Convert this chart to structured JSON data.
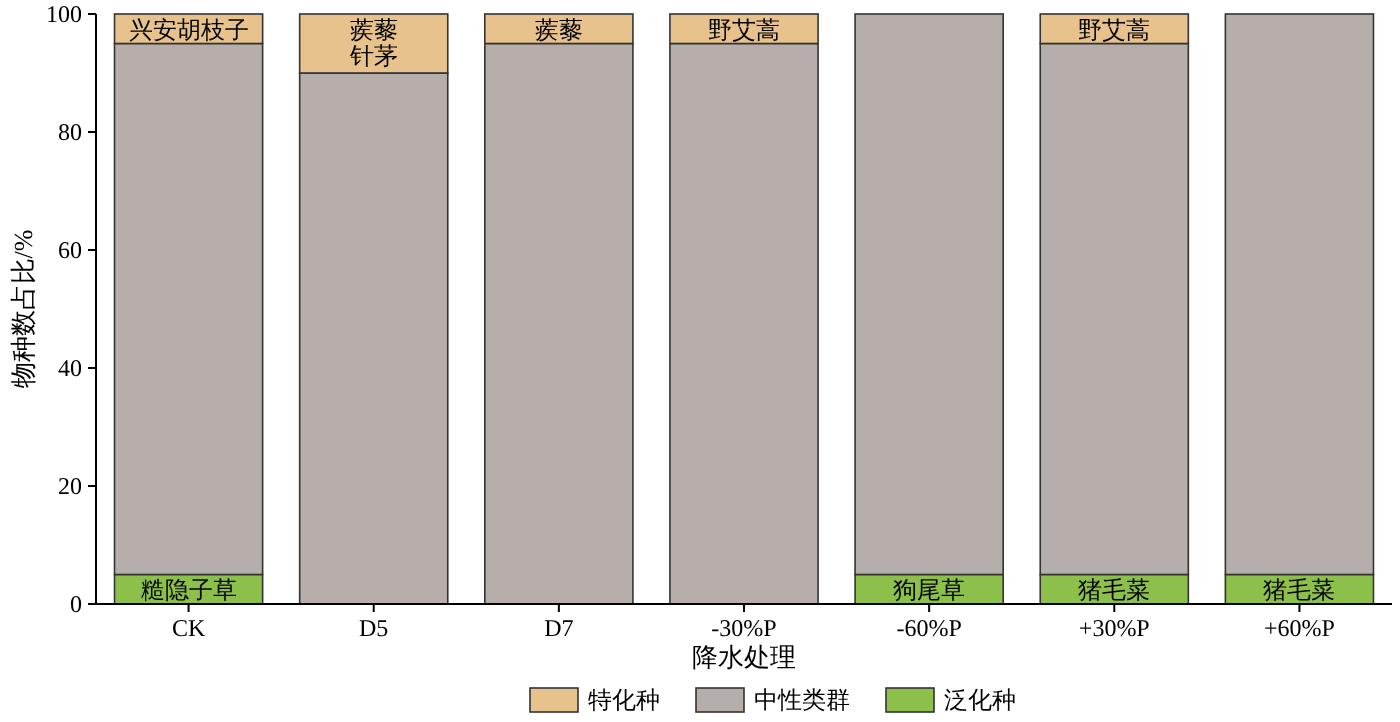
{
  "chart_data": {
    "type": "bar",
    "stacked": true,
    "xlabel": "降水处理",
    "ylabel": "物种数占比/%",
    "categories": [
      "CK",
      "D5",
      "D7",
      "-30%P",
      "-60%P",
      "+30%P",
      "+60%P"
    ],
    "series": [
      {
        "name": "泛化种",
        "color": "#8dc04a",
        "values": [
          5,
          0,
          0,
          0,
          5,
          5,
          5
        ],
        "value_labels": [
          "糙隐子草",
          null,
          null,
          null,
          "狗尾草",
          "猪毛菜",
          "猪毛菜"
        ]
      },
      {
        "name": "中性类群",
        "color": "#b5aeaa",
        "values": [
          90,
          90,
          95,
          95,
          95,
          90,
          95
        ]
      },
      {
        "name": "特化种",
        "color": "#e8c28c",
        "values": [
          5,
          10,
          5,
          5,
          0,
          5,
          0
        ],
        "value_labels": [
          "兴安胡枝子",
          "蒺藜针茅",
          "蒺藜",
          "野艾蒿",
          null,
          "野艾蒿",
          null
        ]
      }
    ],
    "ylim": [
      0,
      100
    ],
    "yticks": [
      0,
      20,
      40,
      60,
      80,
      100
    ],
    "legend": "bottom",
    "grid": false
  }
}
